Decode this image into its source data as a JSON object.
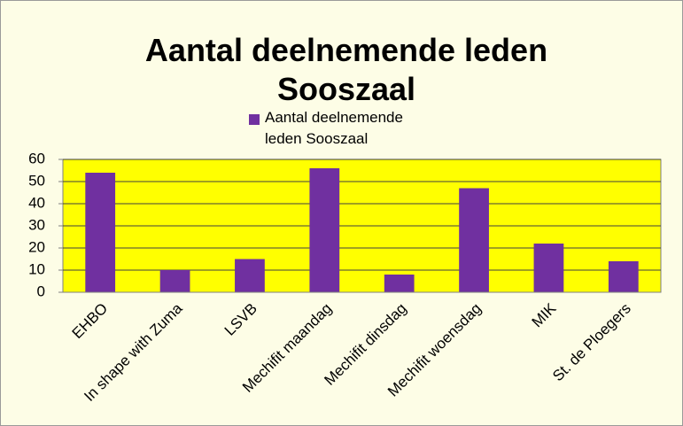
{
  "chart_data": {
    "type": "bar",
    "title": "Aantal deelnemende leden Sooszaal",
    "categories": [
      "EHBO",
      "In shape with Zuma",
      "LSVB",
      "Mechifit maandag",
      "Mechifit dinsdag",
      "Mechifit woensdag",
      "MIK",
      "St. de Ploegers"
    ],
    "series": [
      {
        "name": "Aantal deelnemende leden Sooszaal",
        "color": "#7030a0",
        "values": [
          54,
          10,
          15,
          56,
          8,
          47,
          22,
          14
        ]
      }
    ],
    "ylim": [
      0,
      60
    ],
    "yticks": [
      0,
      10,
      20,
      30,
      40,
      50,
      60
    ],
    "grid": true,
    "plot_background": "#ffff00"
  }
}
